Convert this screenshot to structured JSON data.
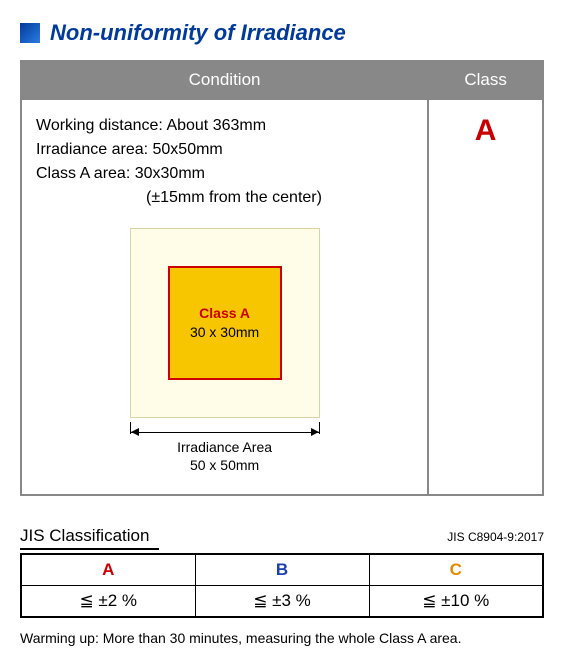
{
  "title": "Non-uniformity of Irradiance",
  "title_color": "#003a9a",
  "table": {
    "headers": {
      "condition": "Condition",
      "class": "Class"
    },
    "condition": {
      "line1": "Working distance: About 363mm",
      "line2": "Irradiance area: 50x50mm",
      "line3": "Class A area: 30x30mm",
      "line4": "(±15mm from the center)"
    },
    "diagram": {
      "outer_bg": "#fffde8",
      "outer_border": "#d8d4a8",
      "inner_bg": "#f7c600",
      "inner_border": "#c90000",
      "inner_label": "Class A",
      "inner_dim": "30 x 30mm",
      "outer_label": "Irradiance Area",
      "outer_dim": "50 x 50mm"
    },
    "class_value": "A",
    "class_color": "#c90000"
  },
  "jis": {
    "title": "JIS Classification",
    "standard": "JIS C8904-9:2017",
    "cols": [
      {
        "label": "A",
        "value": "≦ ±2 %",
        "color": "#c90000"
      },
      {
        "label": "B",
        "value": "≦ ±3 %",
        "color": "#1a3fb5"
      },
      {
        "label": "C",
        "value": "≦ ±10 %",
        "color": "#e68a00"
      }
    ]
  },
  "footnote": "Warming up: More than 30 minutes, measuring the whole Class A area."
}
